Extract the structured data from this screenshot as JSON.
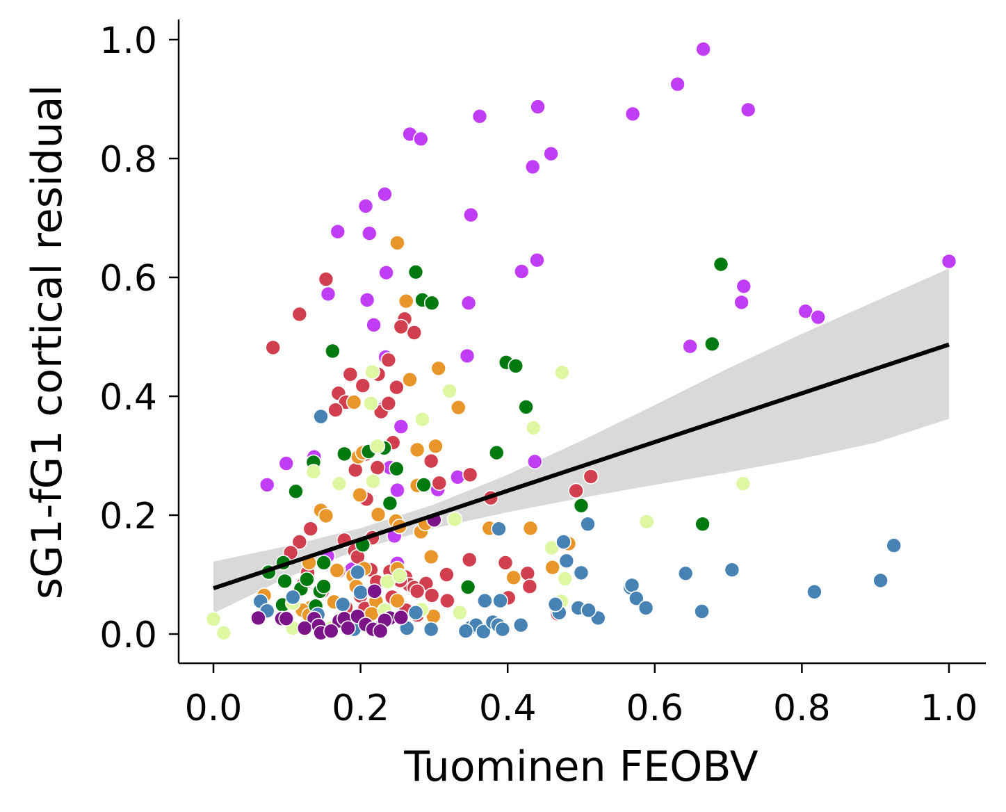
{
  "chart_data": {
    "type": "scatter",
    "xlabel": "Tuominen FEOBV",
    "ylabel": "sG1-fG1 cortical residual",
    "xlim": [
      -0.05,
      1.05
    ],
    "ylim": [
      -0.05,
      1.03
    ],
    "x_ticks": [
      "0.0",
      "0.2",
      "0.4",
      "0.6",
      "0.8",
      "1.0"
    ],
    "y_ticks": [
      "0.0",
      "0.2",
      "0.4",
      "0.6",
      "0.8",
      "1.0"
    ],
    "grid": false,
    "legend": "none",
    "marker_edge_color": "#ffffff",
    "regression": {
      "x": [
        0.0,
        1.0
      ],
      "y": [
        0.077,
        0.487
      ],
      "color": "#000000",
      "ci_color": "#d9d9d9",
      "ci": [
        {
          "x": 0.0,
          "lower": 0.035,
          "upper": 0.122
        },
        {
          "x": 0.1,
          "lower": 0.095,
          "upper": 0.148
        },
        {
          "x": 0.2,
          "lower": 0.143,
          "upper": 0.178
        },
        {
          "x": 0.3,
          "lower": 0.178,
          "upper": 0.218
        },
        {
          "x": 0.4,
          "lower": 0.205,
          "upper": 0.268
        },
        {
          "x": 0.5,
          "lower": 0.229,
          "upper": 0.325
        },
        {
          "x": 0.6,
          "lower": 0.251,
          "upper": 0.385
        },
        {
          "x": 0.7,
          "lower": 0.272,
          "upper": 0.447
        },
        {
          "x": 0.8,
          "lower": 0.295,
          "upper": 0.505
        },
        {
          "x": 0.9,
          "lower": 0.322,
          "upper": 0.56
        },
        {
          "x": 1.0,
          "lower": 0.362,
          "upper": 0.615
        }
      ]
    },
    "series": [
      {
        "color": "#c13cf5",
        "points": [
          [
            0.267,
            0.841
          ],
          [
            0.282,
            0.833
          ],
          [
            0.362,
            0.871
          ],
          [
            0.441,
            0.887
          ],
          [
            0.434,
            0.786
          ],
          [
            0.459,
            0.808
          ],
          [
            0.57,
            0.875
          ],
          [
            0.631,
            0.925
          ],
          [
            0.666,
            0.984
          ],
          [
            0.727,
            0.882
          ],
          [
            0.35,
            0.705
          ],
          [
            0.233,
            0.74
          ],
          [
            0.207,
            0.72
          ],
          [
            0.169,
            0.677
          ],
          [
            0.212,
            0.674
          ],
          [
            0.235,
            0.608
          ],
          [
            0.419,
            0.61
          ],
          [
            0.44,
            0.629
          ],
          [
            0.347,
            0.557
          ],
          [
            0.209,
            0.562
          ],
          [
            0.156,
            0.572
          ],
          [
            0.218,
            0.52
          ],
          [
            0.234,
            0.466
          ],
          [
            0.345,
            0.468
          ],
          [
            0.648,
            0.484
          ],
          [
            0.721,
            0.585
          ],
          [
            0.718,
            0.558
          ],
          [
            0.805,
            0.543
          ],
          [
            0.822,
            0.533
          ],
          [
            1.0,
            0.627
          ],
          [
            0.073,
            0.251
          ],
          [
            0.099,
            0.287
          ],
          [
            0.137,
            0.298
          ],
          [
            0.255,
            0.349
          ],
          [
            0.25,
            0.242
          ],
          [
            0.332,
            0.264
          ],
          [
            0.437,
            0.29
          ],
          [
            0.24,
            0.28
          ],
          [
            0.231,
            0.379
          ],
          [
            0.25,
            0.119
          ],
          [
            0.246,
            0.165
          ],
          [
            0.188,
            0.109
          ],
          [
            0.305,
            0.243
          ],
          [
            0.155,
            0.131
          ]
        ]
      },
      {
        "color": "#d13f4e",
        "points": [
          [
            0.081,
            0.482
          ],
          [
            0.117,
            0.538
          ],
          [
            0.153,
            0.597
          ],
          [
            0.26,
            0.53
          ],
          [
            0.273,
            0.507
          ],
          [
            0.255,
            0.517
          ],
          [
            0.224,
            0.437
          ],
          [
            0.238,
            0.461
          ],
          [
            0.186,
            0.437
          ],
          [
            0.203,
            0.418
          ],
          [
            0.17,
            0.405
          ],
          [
            0.18,
            0.39
          ],
          [
            0.166,
            0.377
          ],
          [
            0.228,
            0.374
          ],
          [
            0.238,
            0.388
          ],
          [
            0.249,
            0.415
          ],
          [
            0.244,
            0.322
          ],
          [
            0.208,
            0.303
          ],
          [
            0.193,
            0.276
          ],
          [
            0.223,
            0.28
          ],
          [
            0.208,
            0.227
          ],
          [
            0.296,
            0.291
          ],
          [
            0.307,
            0.254
          ],
          [
            0.349,
            0.268
          ],
          [
            0.377,
            0.229
          ],
          [
            0.132,
            0.177
          ],
          [
            0.117,
            0.155
          ],
          [
            0.105,
            0.137
          ],
          [
            0.178,
            0.158
          ],
          [
            0.192,
            0.14
          ],
          [
            0.216,
            0.162
          ],
          [
            0.196,
            0.13
          ],
          [
            0.214,
            0.108
          ],
          [
            0.261,
            0.096
          ],
          [
            0.266,
            0.083
          ],
          [
            0.273,
            0.078
          ],
          [
            0.289,
            0.085
          ],
          [
            0.297,
            0.065
          ],
          [
            0.317,
            0.1
          ],
          [
            0.318,
            0.056
          ],
          [
            0.348,
            0.125
          ],
          [
            0.397,
            0.12
          ],
          [
            0.401,
            0.061
          ],
          [
            0.427,
            0.102
          ],
          [
            0.43,
            0.08
          ],
          [
            0.493,
            0.241
          ],
          [
            0.513,
            0.265
          ],
          [
            0.468,
            0.034
          ],
          [
            0.128,
            0.103
          ],
          [
            0.17,
            0.106
          ],
          [
            0.222,
            0.088
          ],
          [
            0.243,
            0.062
          ],
          [
            0.254,
            0.09
          ],
          [
            0.277,
            0.072
          ],
          [
            0.262,
            0.04
          ],
          [
            0.277,
            0.032
          ],
          [
            0.2,
            0.064
          ],
          [
            0.148,
            0.072
          ],
          [
            0.18,
            0.045
          ],
          [
            0.232,
            0.027
          ],
          [
            0.206,
            0.043
          ],
          [
            0.123,
            0.085
          ],
          [
            0.24,
            0.105
          ]
        ]
      },
      {
        "color": "#e8962a",
        "points": [
          [
            0.25,
            0.658
          ],
          [
            0.262,
            0.56
          ],
          [
            0.306,
            0.447
          ],
          [
            0.267,
            0.428
          ],
          [
            0.333,
            0.381
          ],
          [
            0.191,
            0.39
          ],
          [
            0.302,
            0.316
          ],
          [
            0.277,
            0.31
          ],
          [
            0.197,
            0.298
          ],
          [
            0.203,
            0.305
          ],
          [
            0.277,
            0.25
          ],
          [
            0.199,
            0.234
          ],
          [
            0.146,
            0.208
          ],
          [
            0.153,
            0.199
          ],
          [
            0.224,
            0.201
          ],
          [
            0.248,
            0.19
          ],
          [
            0.253,
            0.181
          ],
          [
            0.282,
            0.172
          ],
          [
            0.375,
            0.178
          ],
          [
            0.431,
            0.178
          ],
          [
            0.288,
            0.186
          ],
          [
            0.296,
            0.13
          ],
          [
            0.408,
            0.095
          ],
          [
            0.461,
            0.112
          ],
          [
            0.483,
            0.152
          ],
          [
            0.205,
            0.11
          ],
          [
            0.13,
            0.12
          ],
          [
            0.19,
            0.098
          ],
          [
            0.194,
            0.08
          ],
          [
            0.164,
            0.054
          ],
          [
            0.25,
            0.056
          ],
          [
            0.221,
            0.055
          ],
          [
            0.299,
            0.03
          ],
          [
            0.133,
            0.045
          ],
          [
            0.215,
            0.034
          ],
          [
            0.121,
            0.04
          ],
          [
            0.13,
            0.032
          ],
          [
            0.168,
            0.107
          ],
          [
            0.069,
            0.065
          ],
          [
            0.25,
            0.11
          ]
        ]
      },
      {
        "color": "#007a0f",
        "points": [
          [
            0.275,
            0.609
          ],
          [
            0.284,
            0.562
          ],
          [
            0.297,
            0.557
          ],
          [
            0.162,
            0.476
          ],
          [
            0.398,
            0.457
          ],
          [
            0.411,
            0.451
          ],
          [
            0.425,
            0.382
          ],
          [
            0.69,
            0.622
          ],
          [
            0.678,
            0.488
          ],
          [
            0.211,
            0.307
          ],
          [
            0.232,
            0.313
          ],
          [
            0.178,
            0.303
          ],
          [
            0.136,
            0.289
          ],
          [
            0.112,
            0.24
          ],
          [
            0.249,
            0.278
          ],
          [
            0.286,
            0.251
          ],
          [
            0.385,
            0.305
          ],
          [
            0.24,
            0.22
          ],
          [
            0.5,
            0.216
          ],
          [
            0.665,
            0.185
          ],
          [
            0.15,
            0.12
          ],
          [
            0.095,
            0.12
          ],
          [
            0.075,
            0.104
          ],
          [
            0.097,
            0.089
          ],
          [
            0.119,
            0.076
          ],
          [
            0.145,
            0.072
          ],
          [
            0.15,
            0.08
          ],
          [
            0.127,
            0.092
          ],
          [
            0.094,
            0.049
          ],
          [
            0.203,
            0.15
          ],
          [
            0.346,
            0.079
          ],
          [
            0.139,
            0.047
          ]
        ]
      },
      {
        "color": "#ddf8a0",
        "points": [
          [
            0.216,
            0.441
          ],
          [
            0.214,
            0.388
          ],
          [
            0.321,
            0.409
          ],
          [
            0.284,
            0.361
          ],
          [
            0.474,
            0.44
          ],
          [
            0.435,
            0.347
          ],
          [
            0.136,
            0.273
          ],
          [
            0.171,
            0.253
          ],
          [
            0.217,
            0.257
          ],
          [
            0.223,
            0.316
          ],
          [
            0.328,
            0.193
          ],
          [
            0.589,
            0.189
          ],
          [
            0.72,
            0.253
          ],
          [
            0.46,
            0.145
          ],
          [
            0.478,
            0.093
          ],
          [
            0.473,
            0.055
          ],
          [
            0.335,
            0.036
          ],
          [
            0.283,
            0.041
          ],
          [
            0.0,
            0.025
          ],
          [
            0.014,
            0.002
          ],
          [
            0.237,
            0.088
          ],
          [
            0.253,
            0.098
          ],
          [
            0.108,
            0.052
          ],
          [
            0.108,
            0.01
          ],
          [
            0.16,
            0.01
          ],
          [
            0.233,
            0.04
          ]
        ]
      },
      {
        "color": "#4682b4",
        "points": [
          [
            0.146,
            0.366
          ],
          [
            0.509,
            0.185
          ],
          [
            0.388,
            0.177
          ],
          [
            0.476,
            0.155
          ],
          [
            0.48,
            0.123
          ],
          [
            0.5,
            0.103
          ],
          [
            0.642,
            0.102
          ],
          [
            0.705,
            0.108
          ],
          [
            0.817,
            0.071
          ],
          [
            0.925,
            0.149
          ],
          [
            0.907,
            0.09
          ],
          [
            0.567,
            0.078
          ],
          [
            0.569,
            0.082
          ],
          [
            0.575,
            0.06
          ],
          [
            0.588,
            0.044
          ],
          [
            0.664,
            0.038
          ],
          [
            0.523,
            0.027
          ],
          [
            0.496,
            0.044
          ],
          [
            0.51,
            0.04
          ],
          [
            0.47,
            0.036
          ],
          [
            0.465,
            0.05
          ],
          [
            0.369,
            0.056
          ],
          [
            0.39,
            0.056
          ],
          [
            0.35,
            0.011
          ],
          [
            0.357,
            0.015
          ],
          [
            0.343,
            0.005
          ],
          [
            0.367,
            0.004
          ],
          [
            0.38,
            0.02
          ],
          [
            0.387,
            0.015
          ],
          [
            0.393,
            0.008
          ],
          [
            0.418,
            0.015
          ],
          [
            0.296,
            0.008
          ],
          [
            0.275,
            0.036
          ],
          [
            0.263,
            0.01
          ],
          [
            0.191,
            0.008
          ],
          [
            0.176,
            0.05
          ],
          [
            0.196,
            0.104
          ],
          [
            0.108,
            0.062
          ],
          [
            0.064,
            0.055
          ],
          [
            0.073,
            0.039
          ],
          [
            0.142,
            0.033
          ],
          [
            0.2,
            0.07
          ],
          [
            0.228,
            0.013
          ]
        ]
      },
      {
        "color": "#7b1488",
        "points": [
          [
            0.061,
            0.027
          ],
          [
            0.093,
            0.026
          ],
          [
            0.099,
            0.026
          ],
          [
            0.137,
            0.026
          ],
          [
            0.124,
            0.01
          ],
          [
            0.143,
            0.014
          ],
          [
            0.146,
            0.002
          ],
          [
            0.171,
            0.022
          ],
          [
            0.178,
            0.026
          ],
          [
            0.196,
            0.03
          ],
          [
            0.207,
            0.016
          ],
          [
            0.217,
            0.008
          ],
          [
            0.219,
            0.072
          ],
          [
            0.24,
            0.027
          ],
          [
            0.233,
            0.023
          ],
          [
            0.255,
            0.028
          ],
          [
            0.3,
            0.192
          ],
          [
            0.183,
            0.01
          ],
          [
            0.16,
            0.005
          ],
          [
            0.227,
            0.005
          ]
        ]
      }
    ]
  }
}
